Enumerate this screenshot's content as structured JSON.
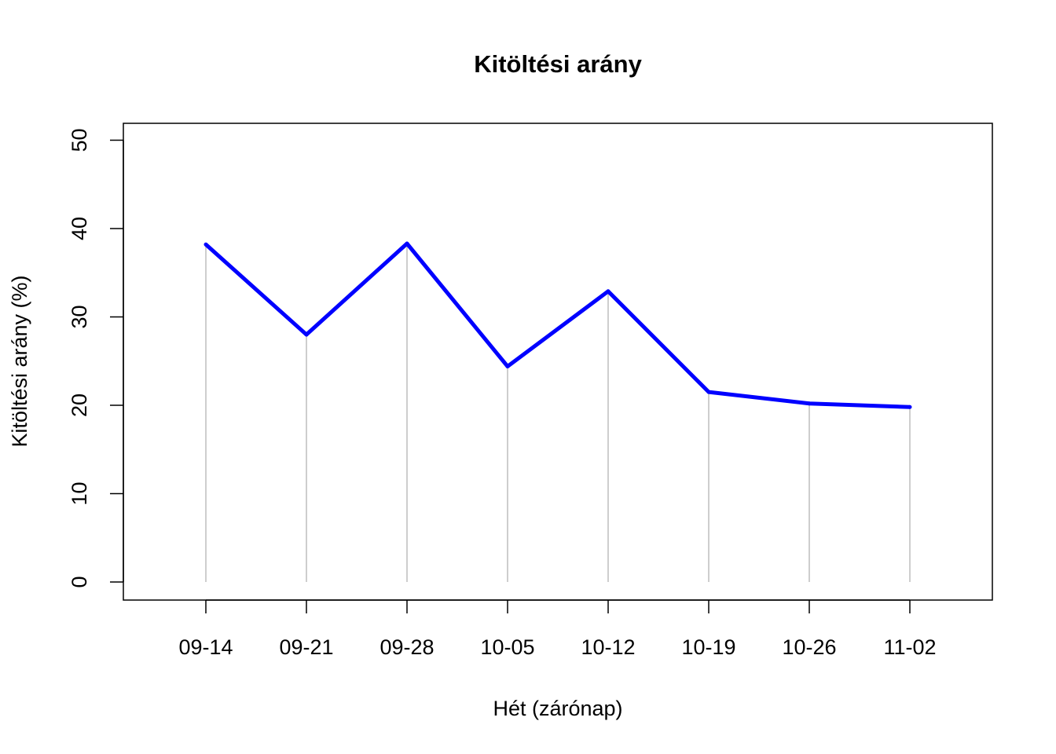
{
  "chart_data": {
    "type": "line",
    "title": "Kitöltési arány",
    "xlabel": "Hét (zárónap)",
    "ylabel": "Kitöltési arány (%)",
    "categories": [
      "09-14",
      "09-21",
      "09-28",
      "10-05",
      "10-12",
      "10-19",
      "10-26",
      "11-02"
    ],
    "series": [
      {
        "values": [
          38.2,
          28.0,
          38.3,
          24.4,
          32.9,
          21.5,
          20.2,
          19.8
        ]
      }
    ],
    "ylim": [
      0,
      50
    ],
    "yticks": [
      0,
      10,
      20,
      30,
      40,
      50
    ],
    "drop_lines": true,
    "legend": "none",
    "grid": false,
    "colors": {
      "line": "#0000ff",
      "drop_line": "#bebebe",
      "axis": "#000000"
    }
  }
}
